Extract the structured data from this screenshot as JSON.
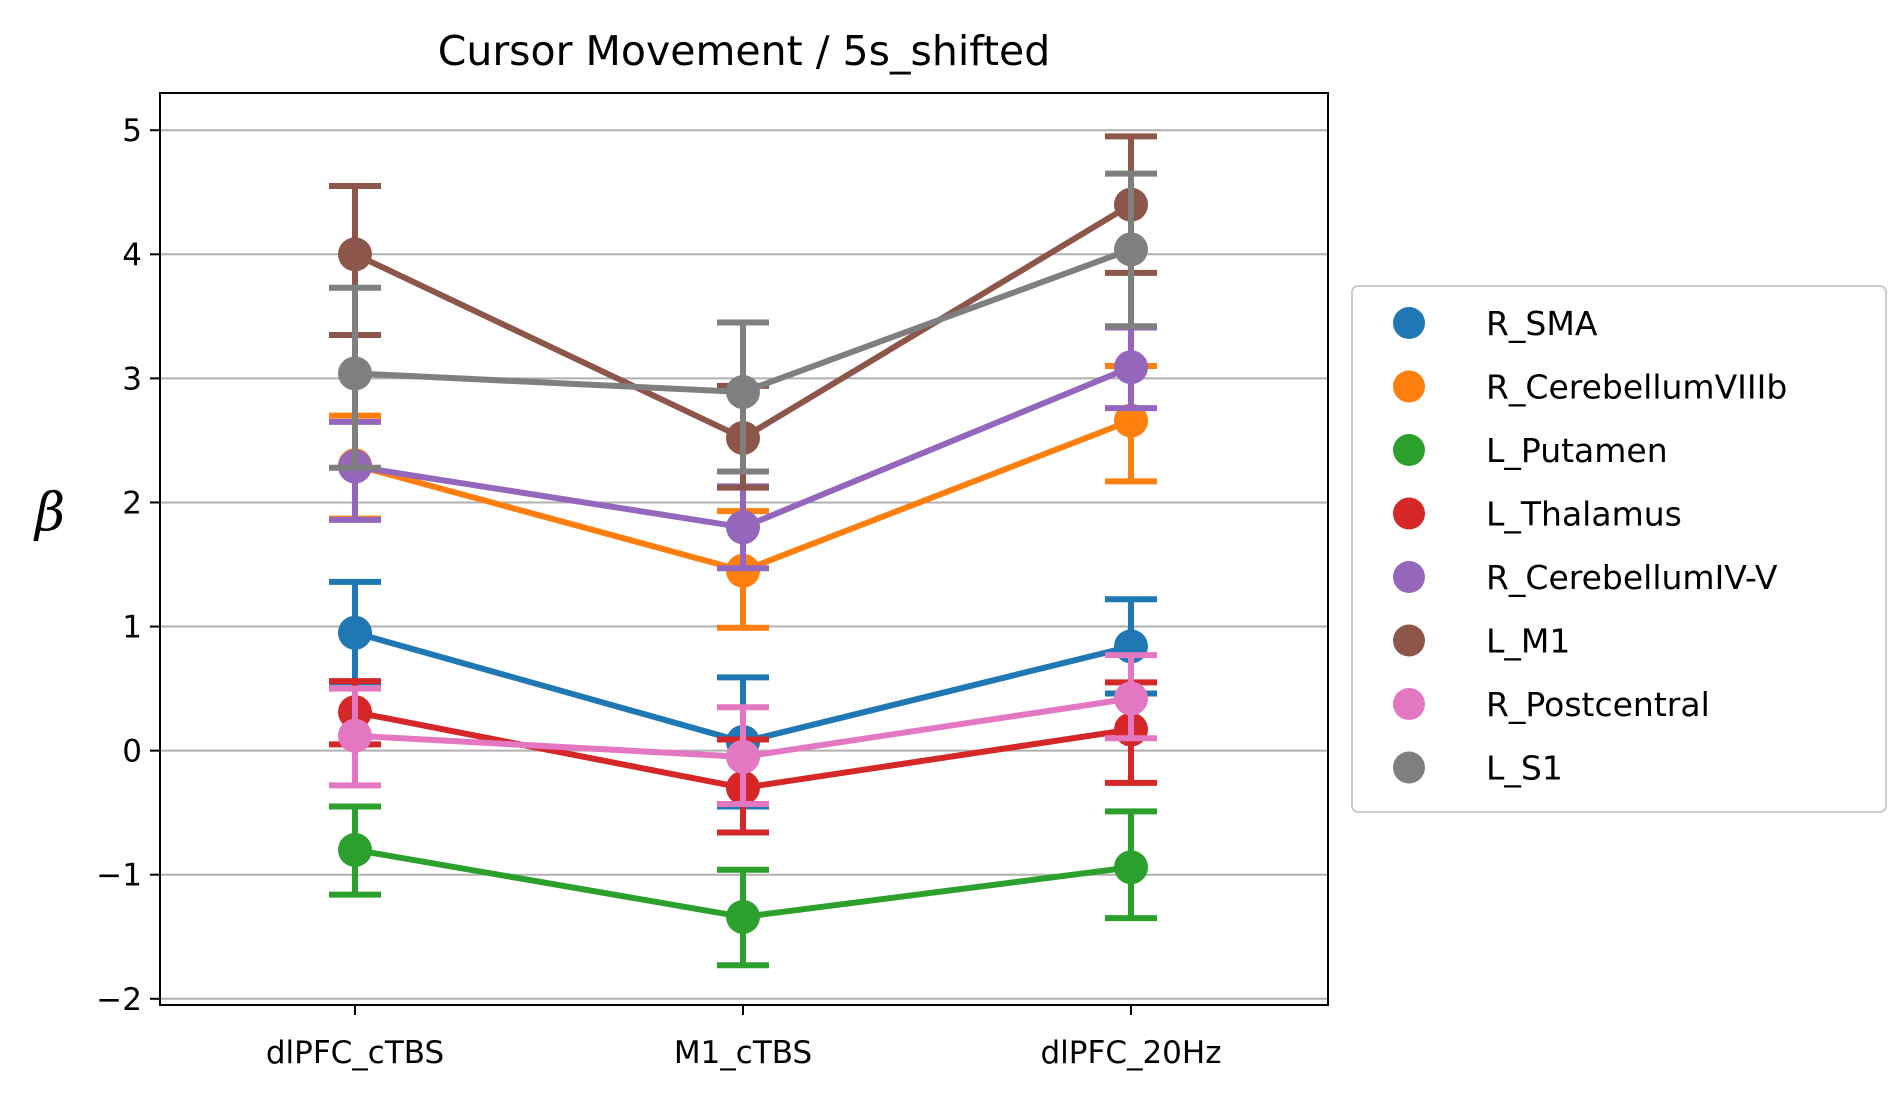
{
  "chart_data": {
    "type": "line",
    "title": "Cursor Movement / 5s_shifted",
    "xlabel": "",
    "ylabel": "β",
    "categories": [
      "dlPFC_cTBS",
      "M1_cTBS",
      "dlPFC_20Hz"
    ],
    "yticks": [
      -2,
      -1,
      0,
      1,
      2,
      3,
      4,
      5
    ],
    "ytick_labels": [
      "−2",
      "−1",
      "0",
      "1",
      "2",
      "3",
      "4",
      "5"
    ],
    "ylim": [
      -2.05,
      5.3
    ],
    "grid": "horizontal",
    "legend_position": "right",
    "series": [
      {
        "name": "R_SMA",
        "color": "#1f77b4",
        "values": [
          0.95,
          0.07,
          0.84
        ],
        "err_low": [
          0.55,
          -0.45,
          0.46
        ],
        "err_high": [
          1.36,
          0.59,
          1.22
        ]
      },
      {
        "name": "R_CerebellumVIIIb",
        "color": "#ff7f0e",
        "values": [
          2.3,
          1.45,
          2.66
        ],
        "err_low": [
          1.87,
          0.99,
          2.17
        ],
        "err_high": [
          2.7,
          1.93,
          3.1
        ]
      },
      {
        "name": "L_Putamen",
        "color": "#2ca02c",
        "values": [
          -0.8,
          -1.34,
          -0.94
        ],
        "err_low": [
          -1.16,
          -1.73,
          -1.35
        ],
        "err_high": [
          -0.45,
          -0.96,
          -0.49
        ]
      },
      {
        "name": "L_Thalamus",
        "color": "#d62728",
        "values": [
          0.31,
          -0.3,
          0.17
        ],
        "err_low": [
          0.05,
          -0.66,
          -0.26
        ],
        "err_high": [
          0.56,
          0.09,
          0.55
        ]
      },
      {
        "name": "R_CerebellumIV-V",
        "color": "#9467bd",
        "values": [
          2.29,
          1.8,
          3.09
        ],
        "err_low": [
          1.86,
          1.47,
          2.76
        ],
        "err_high": [
          2.65,
          2.13,
          3.41
        ]
      },
      {
        "name": "L_M1",
        "color": "#8c564b",
        "values": [
          4.0,
          2.52,
          4.4
        ],
        "err_low": [
          3.35,
          2.12,
          3.85
        ],
        "err_high": [
          4.55,
          2.94,
          4.95
        ]
      },
      {
        "name": "R_Postcentral",
        "color": "#e377c2",
        "values": [
          0.12,
          -0.05,
          0.42
        ],
        "err_low": [
          -0.28,
          -0.43,
          0.1
        ],
        "err_high": [
          0.5,
          0.35,
          0.77
        ]
      },
      {
        "name": "L_S1",
        "color": "#7f7f7f",
        "values": [
          3.04,
          2.89,
          4.04
        ],
        "err_low": [
          2.28,
          2.25,
          3.42
        ],
        "err_high": [
          3.73,
          3.45,
          4.65
        ]
      }
    ]
  }
}
